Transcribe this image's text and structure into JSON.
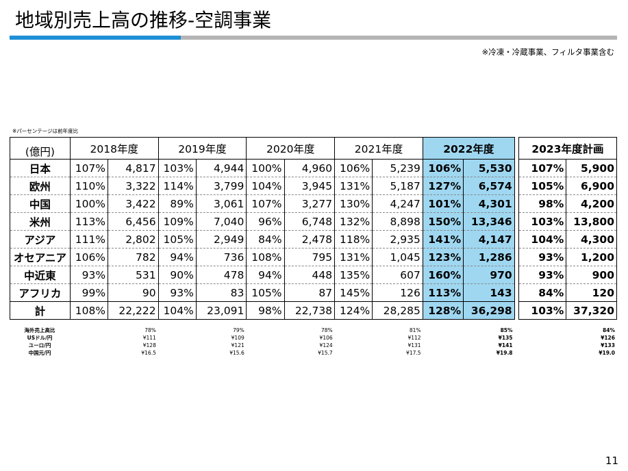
{
  "title": "地域別売上高の推移-空調事業",
  "note_top": "※冷凍・冷蔵事業、フィルタ事業含む",
  "note_small": "※パーセンテージは前年度比",
  "unit": "(億円)",
  "years": [
    "2018年度",
    "2019年度",
    "2020年度",
    "2021年度",
    "2022年度",
    "2023年度計画"
  ],
  "regions": [
    {
      "name": "日本",
      "cells": [
        "107%",
        "4,817",
        "103%",
        "4,944",
        "100%",
        "4,960",
        "106%",
        "5,239",
        "106%",
        "5,530",
        "107%",
        "5,900"
      ]
    },
    {
      "name": "欧州",
      "cells": [
        "110%",
        "3,322",
        "114%",
        "3,799",
        "104%",
        "3,945",
        "131%",
        "5,187",
        "127%",
        "6,574",
        "105%",
        "6,900"
      ]
    },
    {
      "name": "中国",
      "cells": [
        "100%",
        "3,422",
        "89%",
        "3,061",
        "107%",
        "3,277",
        "130%",
        "4,247",
        "101%",
        "4,301",
        "98%",
        "4,200"
      ]
    },
    {
      "name": "米州",
      "cells": [
        "113%",
        "6,456",
        "109%",
        "7,040",
        "96%",
        "6,748",
        "132%",
        "8,898",
        "150%",
        "13,346",
        "103%",
        "13,800"
      ]
    },
    {
      "name": "アジア",
      "cells": [
        "111%",
        "2,802",
        "105%",
        "2,949",
        "84%",
        "2,478",
        "118%",
        "2,935",
        "141%",
        "4,147",
        "104%",
        "4,300"
      ]
    },
    {
      "name": "オセアニア",
      "cells": [
        "106%",
        "782",
        "94%",
        "736",
        "108%",
        "795",
        "131%",
        "1,045",
        "123%",
        "1,286",
        "93%",
        "1,200"
      ]
    },
    {
      "name": "中近東",
      "cells": [
        "93%",
        "531",
        "90%",
        "478",
        "94%",
        "448",
        "135%",
        "607",
        "160%",
        "970",
        "93%",
        "900"
      ]
    },
    {
      "name": "アフリカ",
      "cells": [
        "99%",
        "90",
        "93%",
        "83",
        "105%",
        "87",
        "145%",
        "126",
        "113%",
        "143",
        "84%",
        "120"
      ]
    }
  ],
  "total": {
    "name": "計",
    "cells": [
      "108%",
      "22,222",
      "104%",
      "23,091",
      "98%",
      "22,738",
      "124%",
      "28,285",
      "128%",
      "36,298",
      "103%",
      "37,320"
    ]
  },
  "sub_rows": [
    {
      "label": "海外売上高比",
      "values": [
        "78%",
        "79%",
        "78%",
        "81%",
        "85%",
        "84%"
      ]
    },
    {
      "label": "USドル/円",
      "values": [
        "¥111",
        "¥109",
        "¥106",
        "¥112",
        "¥135",
        "¥126"
      ]
    },
    {
      "label": "ユーロ/円",
      "values": [
        "¥128",
        "¥121",
        "¥124",
        "¥131",
        "¥141",
        "¥133"
      ]
    },
    {
      "label": "中国元/円",
      "values": [
        "¥16.5",
        "¥15.6",
        "¥15.7",
        "¥17.5",
        "¥19.8",
        "¥19.0"
      ]
    }
  ],
  "page_number": "11",
  "colors": {
    "accent_bar": "#1f8fd6",
    "highlight": "#9fd7f1",
    "gray_bar": "#b5b5b5"
  }
}
